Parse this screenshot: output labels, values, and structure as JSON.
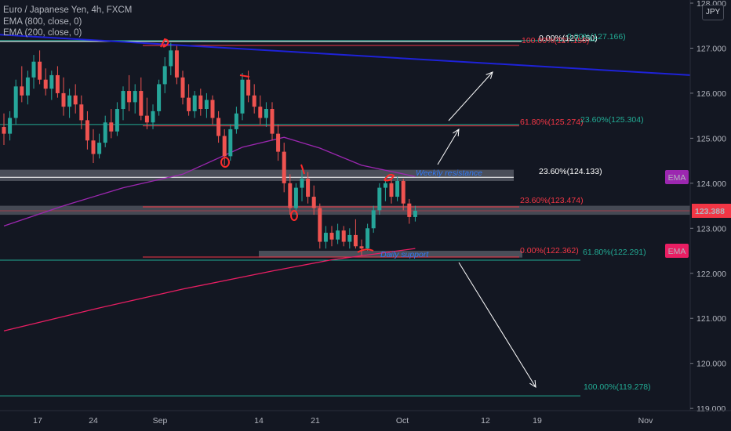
{
  "legend": {
    "title": "Euro / Japanese Yen, 4h, FXCM",
    "ema800": "EMA (800, close, 0)",
    "ema200": "EMA (200, close, 0)"
  },
  "currency": "JPY",
  "colors": {
    "background": "#131722",
    "up": "#26a69a",
    "down": "#ef5350",
    "ema800": "#e91e63",
    "ema200": "#9c27b0",
    "trendline": "#1e22d8",
    "fib_red": "#f23645",
    "fib_teal": "#22ab94",
    "zone": "#787b86",
    "annotation": "#3179f5"
  },
  "chart_data": {
    "type": "candlestick",
    "y_axis": {
      "range": [
        118.95,
        128.0
      ],
      "ticks": [
        "119.000",
        "120.000",
        "121.000",
        "122.000",
        "123.000",
        "124.000",
        "125.000",
        "126.000",
        "127.000",
        "128.000"
      ]
    },
    "x_axis": {
      "ticks": [
        "17",
        "24",
        "Sep",
        "14",
        "21",
        "Oct",
        "12",
        "19",
        "Nov"
      ]
    },
    "candles": [
      {
        "i": 0,
        "o": 125.25,
        "h": 125.55,
        "l": 124.85,
        "c": 125.1
      },
      {
        "i": 1,
        "o": 125.1,
        "h": 125.6,
        "l": 124.95,
        "c": 125.45
      },
      {
        "i": 2,
        "o": 125.45,
        "h": 126.3,
        "l": 125.3,
        "c": 126.15
      },
      {
        "i": 3,
        "o": 126.15,
        "h": 126.6,
        "l": 125.8,
        "c": 125.95
      },
      {
        "i": 4,
        "o": 125.95,
        "h": 126.5,
        "l": 125.75,
        "c": 126.35
      },
      {
        "i": 5,
        "o": 126.35,
        "h": 126.85,
        "l": 126.1,
        "c": 126.7
      },
      {
        "i": 6,
        "o": 126.7,
        "h": 126.95,
        "l": 126.2,
        "c": 126.3
      },
      {
        "i": 7,
        "o": 126.3,
        "h": 126.55,
        "l": 125.95,
        "c": 126.1
      },
      {
        "i": 8,
        "o": 126.1,
        "h": 126.5,
        "l": 125.85,
        "c": 126.4
      },
      {
        "i": 9,
        "o": 126.4,
        "h": 126.6,
        "l": 125.9,
        "c": 126.0
      },
      {
        "i": 10,
        "o": 126.0,
        "h": 126.35,
        "l": 125.5,
        "c": 125.7
      },
      {
        "i": 11,
        "o": 125.7,
        "h": 126.1,
        "l": 125.45,
        "c": 125.95
      },
      {
        "i": 12,
        "o": 125.95,
        "h": 126.2,
        "l": 125.55,
        "c": 125.75
      },
      {
        "i": 13,
        "o": 125.75,
        "h": 125.95,
        "l": 125.2,
        "c": 125.4
      },
      {
        "i": 14,
        "o": 125.4,
        "h": 125.6,
        "l": 124.75,
        "c": 124.95
      },
      {
        "i": 15,
        "o": 124.95,
        "h": 125.2,
        "l": 124.45,
        "c": 124.65
      },
      {
        "i": 16,
        "o": 124.65,
        "h": 125.1,
        "l": 124.55,
        "c": 124.9
      },
      {
        "i": 17,
        "o": 124.9,
        "h": 125.5,
        "l": 124.8,
        "c": 125.35
      },
      {
        "i": 18,
        "o": 125.35,
        "h": 125.65,
        "l": 125.0,
        "c": 125.15
      },
      {
        "i": 19,
        "o": 125.15,
        "h": 125.8,
        "l": 125.05,
        "c": 125.65
      },
      {
        "i": 20,
        "o": 125.65,
        "h": 126.15,
        "l": 125.4,
        "c": 126.05
      },
      {
        "i": 21,
        "o": 126.05,
        "h": 126.4,
        "l": 125.6,
        "c": 125.8
      },
      {
        "i": 22,
        "o": 125.8,
        "h": 126.2,
        "l": 125.55,
        "c": 126.05
      },
      {
        "i": 23,
        "o": 126.05,
        "h": 126.35,
        "l": 125.4,
        "c": 125.5
      },
      {
        "i": 24,
        "o": 125.5,
        "h": 125.9,
        "l": 125.2,
        "c": 125.35
      },
      {
        "i": 25,
        "o": 125.35,
        "h": 125.75,
        "l": 125.2,
        "c": 125.6
      },
      {
        "i": 26,
        "o": 125.6,
        "h": 126.3,
        "l": 125.5,
        "c": 126.2
      },
      {
        "i": 27,
        "o": 126.2,
        "h": 126.8,
        "l": 126.0,
        "c": 126.6
      },
      {
        "i": 28,
        "o": 126.6,
        "h": 127.12,
        "l": 126.4,
        "c": 126.95
      },
      {
        "i": 29,
        "o": 126.95,
        "h": 127.05,
        "l": 126.2,
        "c": 126.35
      },
      {
        "i": 30,
        "o": 126.35,
        "h": 126.5,
        "l": 125.75,
        "c": 125.9
      },
      {
        "i": 31,
        "o": 125.9,
        "h": 126.2,
        "l": 125.5,
        "c": 125.6
      },
      {
        "i": 32,
        "o": 125.6,
        "h": 126.05,
        "l": 125.45,
        "c": 125.95
      },
      {
        "i": 33,
        "o": 125.95,
        "h": 126.1,
        "l": 125.5,
        "c": 125.65
      },
      {
        "i": 34,
        "o": 125.65,
        "h": 126.0,
        "l": 125.45,
        "c": 125.85
      },
      {
        "i": 35,
        "o": 125.85,
        "h": 125.95,
        "l": 125.3,
        "c": 125.45
      },
      {
        "i": 36,
        "o": 125.45,
        "h": 125.6,
        "l": 124.9,
        "c": 125.05
      },
      {
        "i": 37,
        "o": 125.05,
        "h": 125.2,
        "l": 124.4,
        "c": 124.6
      },
      {
        "i": 38,
        "o": 124.6,
        "h": 125.3,
        "l": 124.5,
        "c": 125.2
      },
      {
        "i": 39,
        "o": 125.2,
        "h": 125.7,
        "l": 125.1,
        "c": 125.55
      },
      {
        "i": 40,
        "o": 125.55,
        "h": 126.45,
        "l": 125.4,
        "c": 126.3
      },
      {
        "i": 41,
        "o": 126.3,
        "h": 126.5,
        "l": 125.8,
        "c": 125.95
      },
      {
        "i": 42,
        "o": 125.95,
        "h": 126.2,
        "l": 125.55,
        "c": 125.7
      },
      {
        "i": 43,
        "o": 125.7,
        "h": 125.95,
        "l": 125.3,
        "c": 125.45
      },
      {
        "i": 44,
        "o": 125.45,
        "h": 125.8,
        "l": 125.25,
        "c": 125.65
      },
      {
        "i": 45,
        "o": 125.65,
        "h": 125.8,
        "l": 124.95,
        "c": 125.1
      },
      {
        "i": 46,
        "o": 125.1,
        "h": 125.3,
        "l": 124.5,
        "c": 124.7
      },
      {
        "i": 47,
        "o": 124.7,
        "h": 124.9,
        "l": 123.8,
        "c": 124.0
      },
      {
        "i": 48,
        "o": 124.0,
        "h": 124.2,
        "l": 123.3,
        "c": 123.45
      },
      {
        "i": 49,
        "o": 123.45,
        "h": 124.0,
        "l": 123.3,
        "c": 123.9
      },
      {
        "i": 50,
        "o": 123.9,
        "h": 124.3,
        "l": 123.6,
        "c": 124.1
      },
      {
        "i": 51,
        "o": 124.1,
        "h": 124.25,
        "l": 123.55,
        "c": 123.7
      },
      {
        "i": 52,
        "o": 123.7,
        "h": 123.95,
        "l": 123.3,
        "c": 123.45
      },
      {
        "i": 53,
        "o": 123.45,
        "h": 123.55,
        "l": 122.55,
        "c": 122.7
      },
      {
        "i": 54,
        "o": 122.7,
        "h": 123.05,
        "l": 122.55,
        "c": 122.9
      },
      {
        "i": 55,
        "o": 122.9,
        "h": 123.05,
        "l": 122.6,
        "c": 122.75
      },
      {
        "i": 56,
        "o": 122.75,
        "h": 123.1,
        "l": 122.65,
        "c": 122.95
      },
      {
        "i": 57,
        "o": 122.95,
        "h": 123.05,
        "l": 122.6,
        "c": 122.7
      },
      {
        "i": 58,
        "o": 122.7,
        "h": 123.0,
        "l": 122.55,
        "c": 122.85
      },
      {
        "i": 59,
        "o": 122.85,
        "h": 123.2,
        "l": 122.55,
        "c": 122.6
      },
      {
        "i": 60,
        "o": 122.6,
        "h": 122.75,
        "l": 122.4,
        "c": 122.55
      },
      {
        "i": 61,
        "o": 122.55,
        "h": 123.1,
        "l": 122.5,
        "c": 123.0
      },
      {
        "i": 62,
        "o": 123.0,
        "h": 123.5,
        "l": 122.9,
        "c": 123.4
      },
      {
        "i": 63,
        "o": 123.4,
        "h": 124.0,
        "l": 123.3,
        "c": 123.9
      },
      {
        "i": 64,
        "o": 123.9,
        "h": 124.15,
        "l": 123.6,
        "c": 124.0
      },
      {
        "i": 65,
        "o": 124.0,
        "h": 124.1,
        "l": 123.55,
        "c": 123.7
      },
      {
        "i": 66,
        "o": 123.7,
        "h": 124.15,
        "l": 123.6,
        "c": 124.05
      },
      {
        "i": 67,
        "o": 124.05,
        "h": 124.1,
        "l": 123.4,
        "c": 123.55
      },
      {
        "i": 68,
        "o": 123.55,
        "h": 123.65,
        "l": 123.1,
        "c": 123.25
      },
      {
        "i": 69,
        "o": 123.25,
        "h": 123.5,
        "l": 123.15,
        "c": 123.39
      }
    ],
    "ema200": [
      [
        0,
        123.05
      ],
      [
        10,
        123.5
      ],
      [
        20,
        123.9
      ],
      [
        30,
        124.2
      ],
      [
        40,
        124.8
      ],
      [
        47,
        125.02
      ],
      [
        53,
        124.78
      ],
      [
        60,
        124.4
      ],
      [
        69,
        124.15
      ]
    ],
    "ema800": [
      [
        0,
        120.72
      ],
      [
        15,
        121.2
      ],
      [
        30,
        121.65
      ],
      [
        45,
        122.05
      ],
      [
        55,
        122.3
      ],
      [
        69,
        122.55
      ]
    ],
    "last_price": "123.388",
    "ema_tags": [
      "EMA",
      "EMA"
    ],
    "horizontal_lines": [
      127.166,
      127.15,
      125.304,
      122.291,
      119.278
    ],
    "trendline": {
      "from": 127.3,
      "to": 126.4
    },
    "fib_labels": [
      {
        "text": "0.00%(127.150)",
        "color": "white"
      },
      {
        "text": "100.00%(127.150)",
        "color": "red"
      },
      {
        "text": "0.00%(127.166)",
        "color": "teal"
      },
      {
        "text": "61.80%(125.274)",
        "color": "red"
      },
      {
        "text": "23.60%(125.304)",
        "color": "teal"
      },
      {
        "text": "23.60%(124.133)",
        "color": "white"
      },
      {
        "text": "23.60%(123.474)",
        "color": "red"
      },
      {
        "text": "0.00%(122.362)",
        "color": "red"
      },
      {
        "text": "61.80%(122.291)",
        "color": "teal"
      },
      {
        "text": "100.00%(119.278)",
        "color": "teal"
      }
    ],
    "annotations": [
      "Weekly resistance",
      "Daily support"
    ]
  }
}
